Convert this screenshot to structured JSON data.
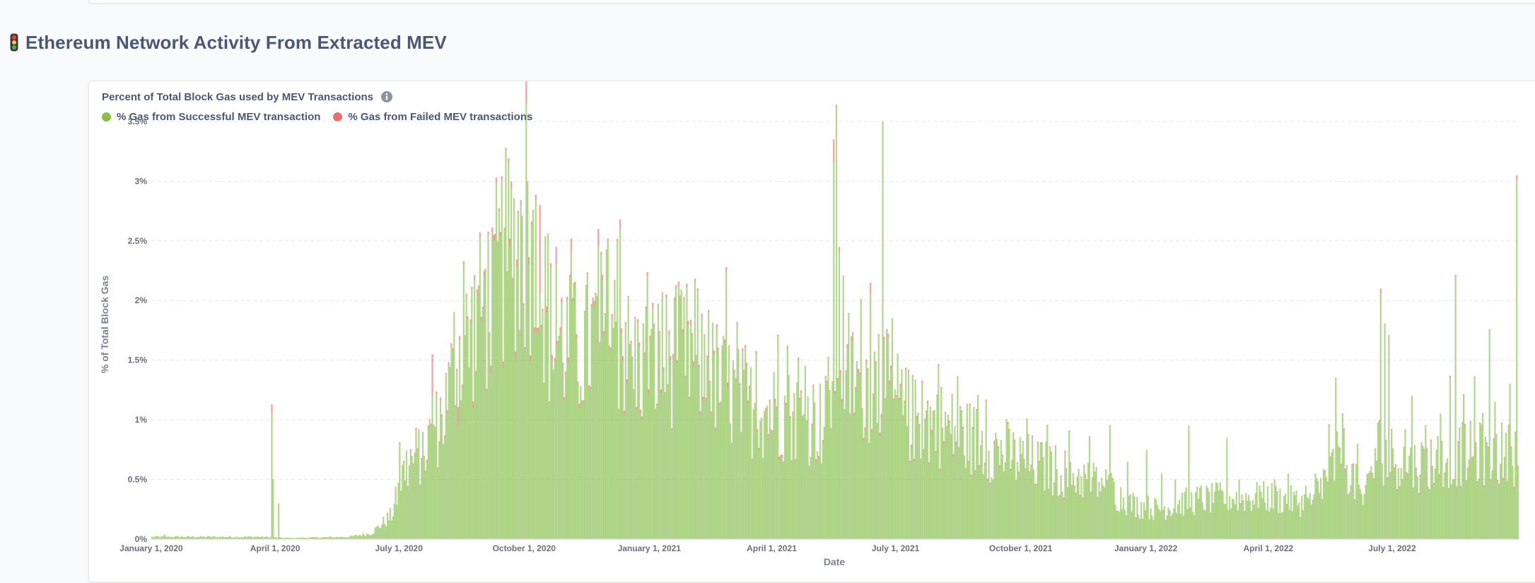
{
  "section": {
    "title": "Ethereum Network Activity From Extracted MEV",
    "icon": "traffic-light-icon"
  },
  "card": {
    "title": "Percent of Total Block Gas used by MEV Transactions",
    "info_icon": "info-icon"
  },
  "chart_data": {
    "type": "bar",
    "stacked": true,
    "x_type": "date",
    "x_start": "2020-01-01",
    "x_end": "2022-10-01",
    "x_step_days": 1,
    "xlabel": "Date",
    "ylabel": "% of Total Block Gas",
    "ylim": [
      0,
      3.6
    ],
    "yticks": [
      "0%",
      "0.5%",
      "1%",
      "1.5%",
      "2%",
      "2.5%",
      "3%",
      "3.5%"
    ],
    "ytick_values": [
      0,
      0.5,
      1,
      1.5,
      2,
      2.5,
      3,
      3.5
    ],
    "xticks": [
      "January 1, 2020",
      "April 1, 2020",
      "July 1, 2020",
      "October 1, 2020",
      "January 1, 2021",
      "April 1, 2021",
      "July 1, 2021",
      "October 1, 2021",
      "January 1, 2022",
      "April 1, 2022",
      "July 1, 2022"
    ],
    "xtick_dates": [
      "2020-01-01",
      "2020-04-01",
      "2020-07-01",
      "2020-10-01",
      "2021-01-01",
      "2021-04-01",
      "2021-07-01",
      "2021-10-01",
      "2022-01-01",
      "2022-04-01",
      "2022-07-01"
    ],
    "grid": true,
    "legend_position": "top-left",
    "series": [
      {
        "name": "% Gas from Successful MEV transaction",
        "color": "#88bf4d",
        "knots": [
          [
            "2020-01-01",
            0.02
          ],
          [
            "2020-03-20",
            0.02
          ],
          [
            "2020-04-10",
            0.01
          ],
          [
            "2020-05-25",
            0.02
          ],
          [
            "2020-06-10",
            0.05
          ],
          [
            "2020-06-25",
            0.2
          ],
          [
            "2020-07-05",
            0.6
          ],
          [
            "2020-07-20",
            0.75
          ],
          [
            "2020-08-01",
            1.0
          ],
          [
            "2020-08-15",
            1.55
          ],
          [
            "2020-09-01",
            1.9
          ],
          [
            "2020-09-15",
            2.3
          ],
          [
            "2020-09-25",
            2.45
          ],
          [
            "2020-10-10",
            2.25
          ],
          [
            "2020-10-20",
            1.7
          ],
          [
            "2020-11-10",
            1.55
          ],
          [
            "2020-12-01",
            1.8
          ],
          [
            "2020-12-20",
            1.45
          ],
          [
            "2021-01-15",
            1.5
          ],
          [
            "2021-02-01",
            1.55
          ],
          [
            "2021-02-20",
            1.3
          ],
          [
            "2021-03-15",
            1.1
          ],
          [
            "2021-04-10",
            1.05
          ],
          [
            "2021-05-01",
            1.0
          ],
          [
            "2021-05-10",
            0.95
          ],
          [
            "2021-05-18",
            1.6
          ],
          [
            "2021-06-01",
            1.3
          ],
          [
            "2021-06-20",
            1.3
          ],
          [
            "2021-07-10",
            1.0
          ],
          [
            "2021-08-01",
            0.95
          ],
          [
            "2021-09-01",
            0.8
          ],
          [
            "2021-10-01",
            0.65
          ],
          [
            "2021-11-01",
            0.55
          ],
          [
            "2021-12-01",
            0.45
          ],
          [
            "2021-12-20",
            0.3
          ],
          [
            "2022-01-10",
            0.25
          ],
          [
            "2022-02-01",
            0.32
          ],
          [
            "2022-03-01",
            0.35
          ],
          [
            "2022-04-01",
            0.35
          ],
          [
            "2022-05-01",
            0.3
          ],
          [
            "2022-05-15",
            0.55
          ],
          [
            "2022-05-25",
            0.7
          ],
          [
            "2022-06-10",
            0.3
          ],
          [
            "2022-06-20",
            0.75
          ],
          [
            "2022-07-15",
            0.6
          ],
          [
            "2022-08-15",
            0.7
          ],
          [
            "2022-10-01",
            0.7
          ]
        ],
        "spikes": [
          [
            "2020-01-10",
            0.04
          ],
          [
            "2020-03-29",
            1.05
          ],
          [
            "2020-03-30",
            0.5
          ],
          [
            "2020-04-03",
            0.3
          ],
          [
            "2020-07-01",
            0.8
          ],
          [
            "2020-07-18",
            0.9
          ],
          [
            "2020-07-25",
            1.2
          ],
          [
            "2020-08-05",
            1.05
          ],
          [
            "2020-08-10",
            1.9
          ],
          [
            "2020-08-17",
            2.3
          ],
          [
            "2020-08-28",
            2.1
          ],
          [
            "2020-09-02",
            2.25
          ],
          [
            "2020-09-08",
            2.5
          ],
          [
            "2020-09-12",
            2.75
          ],
          [
            "2020-09-16",
            2.6
          ],
          [
            "2020-09-20",
            2.45
          ],
          [
            "2020-09-28",
            2.8
          ],
          [
            "2020-10-02",
            3.65
          ],
          [
            "2020-10-07",
            2.75
          ],
          [
            "2020-10-12",
            2.05
          ],
          [
            "2020-10-18",
            2.55
          ],
          [
            "2020-10-24",
            2.3
          ],
          [
            "2020-11-04",
            2.4
          ],
          [
            "2020-11-14",
            1.9
          ],
          [
            "2020-11-24",
            2.45
          ],
          [
            "2020-12-01",
            2.5
          ],
          [
            "2020-12-08",
            2.5
          ],
          [
            "2020-12-10",
            2.6
          ],
          [
            "2020-12-14",
            1.8
          ],
          [
            "2020-12-30",
            2.2
          ],
          [
            "2021-01-10",
            2.05
          ],
          [
            "2021-01-20",
            2.1
          ],
          [
            "2021-01-26",
            2.0
          ],
          [
            "2021-02-03",
            2.15
          ],
          [
            "2021-02-08",
            1.85
          ],
          [
            "2021-02-13",
            1.9
          ],
          [
            "2021-02-26",
            2.25
          ],
          [
            "2021-03-06",
            1.8
          ],
          [
            "2021-03-12",
            1.6
          ],
          [
            "2021-03-20",
            1.55
          ],
          [
            "2021-04-05",
            1.7
          ],
          [
            "2021-04-12",
            1.6
          ],
          [
            "2021-04-20",
            1.5
          ],
          [
            "2021-04-25",
            1.45
          ],
          [
            "2021-05-10",
            1.35
          ],
          [
            "2021-05-16",
            3.15
          ],
          [
            "2021-05-18",
            3.62
          ],
          [
            "2021-05-20",
            2.4
          ],
          [
            "2021-05-23",
            2.2
          ],
          [
            "2021-05-26",
            1.6
          ],
          [
            "2021-06-05",
            2.0
          ],
          [
            "2021-06-12",
            2.05
          ],
          [
            "2021-06-18",
            1.7
          ],
          [
            "2021-06-21",
            3.5
          ],
          [
            "2021-06-28",
            1.85
          ],
          [
            "2021-07-02",
            1.55
          ],
          [
            "2021-07-10",
            1.4
          ],
          [
            "2021-07-20",
            1.3
          ],
          [
            "2021-08-01",
            1.45
          ],
          [
            "2021-08-15",
            1.35
          ],
          [
            "2021-08-30",
            1.2
          ],
          [
            "2021-09-05",
            1.15
          ],
          [
            "2021-09-20",
            1.0
          ],
          [
            "2021-10-05",
            1.0
          ],
          [
            "2021-10-20",
            0.95
          ],
          [
            "2021-11-05",
            0.9
          ],
          [
            "2021-11-20",
            0.85
          ],
          [
            "2021-12-05",
            0.95
          ],
          [
            "2021-12-18",
            0.65
          ],
          [
            "2022-01-01",
            0.75
          ],
          [
            "2022-01-12",
            0.55
          ],
          [
            "2022-01-22",
            0.5
          ],
          [
            "2022-02-01",
            0.95
          ],
          [
            "2022-02-10",
            0.45
          ],
          [
            "2022-02-20",
            0.4
          ],
          [
            "2022-03-01",
            0.85
          ],
          [
            "2022-03-10",
            0.5
          ],
          [
            "2022-03-25",
            0.45
          ],
          [
            "2022-04-05",
            0.5
          ],
          [
            "2022-04-15",
            0.55
          ],
          [
            "2022-04-28",
            0.45
          ],
          [
            "2022-05-05",
            0.55
          ],
          [
            "2022-05-15",
            0.95
          ],
          [
            "2022-05-20",
            1.35
          ],
          [
            "2022-05-25",
            1.05
          ],
          [
            "2022-06-05",
            0.8
          ],
          [
            "2022-06-15",
            0.6
          ],
          [
            "2022-06-22",
            2.05
          ],
          [
            "2022-06-25",
            1.8
          ],
          [
            "2022-06-28",
            1.7
          ],
          [
            "2022-07-10",
            0.9
          ],
          [
            "2022-07-15",
            1.2
          ],
          [
            "2022-07-25",
            0.95
          ],
          [
            "2022-08-05",
            1.05
          ],
          [
            "2022-08-12",
            1.35
          ],
          [
            "2022-08-16",
            2.2
          ],
          [
            "2022-08-22",
            1.2
          ],
          [
            "2022-08-30",
            1.35
          ],
          [
            "2022-09-05",
            1.05
          ],
          [
            "2022-09-10",
            1.75
          ],
          [
            "2022-09-14",
            1.15
          ],
          [
            "2022-09-25",
            1.3
          ],
          [
            "2022-09-30",
            3.0
          ]
        ]
      },
      {
        "name": "% Gas from Failed MEV transactions",
        "color": "#ed6e6e",
        "spikes": [
          [
            "2020-03-29",
            0.08
          ],
          [
            "2020-07-25",
            0.35
          ],
          [
            "2020-08-13",
            0.15
          ],
          [
            "2020-10-02",
            0.4
          ],
          [
            "2020-10-12",
            0.75
          ],
          [
            "2020-10-24",
            0.15
          ],
          [
            "2020-11-04",
            0.12
          ],
          [
            "2020-11-24",
            0.15
          ],
          [
            "2020-12-10",
            0.08
          ],
          [
            "2021-05-16",
            0.2
          ],
          [
            "2021-05-20",
            0.05
          ],
          [
            "2021-06-12",
            0.1
          ],
          [
            "2022-06-22",
            0.05
          ],
          [
            "2022-09-30",
            0.05
          ]
        ]
      }
    ]
  }
}
